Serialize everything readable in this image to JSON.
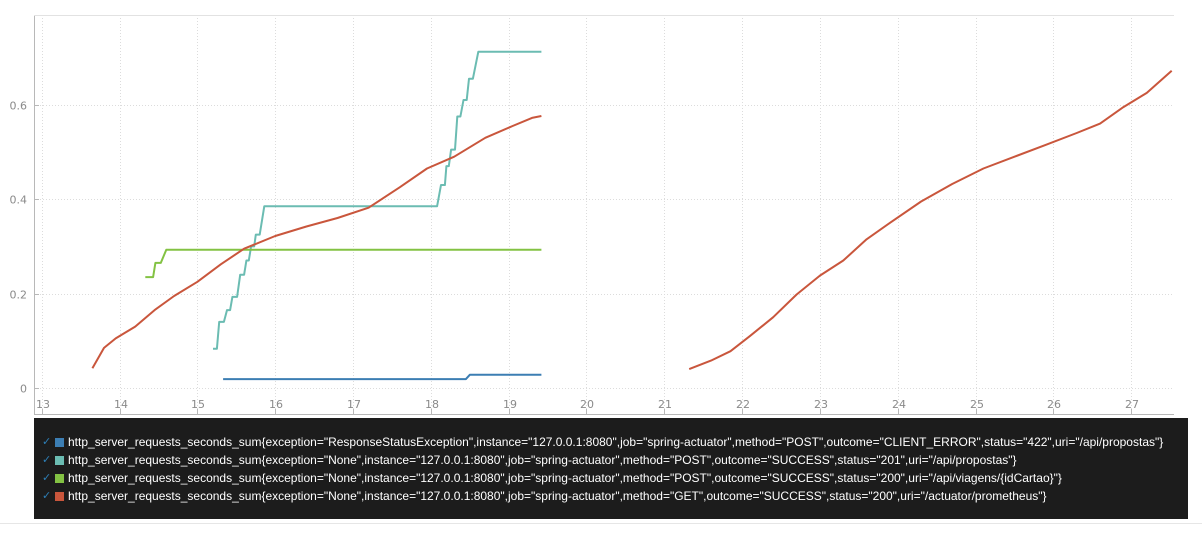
{
  "chart_data": {
    "type": "line",
    "xlim": [
      12.9,
      27.55
    ],
    "ylim": [
      -0.055,
      0.79
    ],
    "x_ticks": [
      13,
      14,
      15,
      16,
      17,
      18,
      19,
      20,
      21,
      22,
      23,
      24,
      25,
      26,
      27
    ],
    "x_tick_labels": [
      "13",
      "14",
      "15",
      "16",
      "17",
      "18",
      "19",
      "20",
      "21",
      "22",
      "23",
      "24",
      "25",
      "26",
      "27"
    ],
    "y_ticks": [
      0,
      0.2,
      0.4,
      0.6
    ],
    "y_tick_labels": [
      "0",
      "0.2",
      "0.4",
      "0.6"
    ],
    "grid": true,
    "legend_position": "bottom",
    "series": [
      {
        "name": "http_server_requests_seconds_sum{exception=\"ResponseStatusException\",instance=\"127.0.0.1:8080\",job=\"spring-actuator\",method=\"POST\",outcome=\"CLIENT_ERROR\",status=\"422\",uri=\"/api/propostas\"}",
        "color": "#3c7eb3",
        "segments": [
          [
            [
              15.33,
              0.019
            ],
            [
              18.45,
              0.019
            ],
            [
              18.5,
              0.028
            ],
            [
              19.42,
              0.028
            ]
          ]
        ]
      },
      {
        "name": "http_server_requests_seconds_sum{exception=\"None\",instance=\"127.0.0.1:8080\",job=\"spring-actuator\",method=\"POST\",outcome=\"SUCCESS\",status=\"201\",uri=\"/api/propostas\"}",
        "color": "#6bbcb2",
        "segments": [
          [
            [
              15.2,
              0.083
            ],
            [
              15.25,
              0.083
            ],
            [
              15.28,
              0.14
            ],
            [
              15.34,
              0.14
            ],
            [
              15.38,
              0.165
            ],
            [
              15.42,
              0.165
            ],
            [
              15.45,
              0.193
            ],
            [
              15.51,
              0.193
            ],
            [
              15.55,
              0.24
            ],
            [
              15.6,
              0.24
            ],
            [
              15.63,
              0.27
            ],
            [
              15.66,
              0.27
            ],
            [
              15.69,
              0.3
            ],
            [
              15.73,
              0.3
            ],
            [
              15.75,
              0.325
            ],
            [
              15.8,
              0.325
            ],
            [
              15.86,
              0.385
            ],
            [
              18.08,
              0.385
            ],
            [
              18.13,
              0.43
            ],
            [
              18.18,
              0.43
            ],
            [
              18.2,
              0.47
            ],
            [
              18.23,
              0.47
            ],
            [
              18.26,
              0.505
            ],
            [
              18.31,
              0.505
            ],
            [
              18.34,
              0.575
            ],
            [
              18.38,
              0.575
            ],
            [
              18.42,
              0.61
            ],
            [
              18.46,
              0.61
            ],
            [
              18.49,
              0.655
            ],
            [
              18.54,
              0.655
            ],
            [
              18.61,
              0.712
            ],
            [
              19.42,
              0.712
            ]
          ]
        ]
      },
      {
        "name": "http_server_requests_seconds_sum{exception=\"None\",instance=\"127.0.0.1:8080\",job=\"spring-actuator\",method=\"POST\",outcome=\"SUCCESS\",status=\"200\",uri=\"/api/viagens/{idCartao}\"}",
        "color": "#83c243",
        "segments": [
          [
            [
              14.33,
              0.235
            ],
            [
              14.43,
              0.235
            ],
            [
              14.46,
              0.265
            ],
            [
              14.53,
              0.265
            ],
            [
              14.6,
              0.293
            ],
            [
              19.42,
              0.293
            ]
          ]
        ]
      },
      {
        "name": "http_server_requests_seconds_sum{exception=\"None\",instance=\"127.0.0.1:8080\",job=\"spring-actuator\",method=\"GET\",outcome=\"SUCCESS\",status=\"200\",uri=\"/actuator/prometheus\"}",
        "color": "#c9563c",
        "segments": [
          [
            [
              13.65,
              0.042
            ],
            [
              13.8,
              0.085
            ],
            [
              13.95,
              0.105
            ],
            [
              14.2,
              0.13
            ],
            [
              14.45,
              0.165
            ],
            [
              14.7,
              0.195
            ],
            [
              15.0,
              0.225
            ],
            [
              15.3,
              0.262
            ],
            [
              15.6,
              0.295
            ],
            [
              16.0,
              0.322
            ],
            [
              16.4,
              0.342
            ],
            [
              16.8,
              0.36
            ],
            [
              17.2,
              0.382
            ],
            [
              17.6,
              0.425
            ],
            [
              17.95,
              0.465
            ],
            [
              18.3,
              0.49
            ],
            [
              18.7,
              0.53
            ],
            [
              19.05,
              0.555
            ],
            [
              19.3,
              0.572
            ],
            [
              19.42,
              0.576
            ]
          ],
          [
            [
              21.32,
              0.04
            ],
            [
              21.6,
              0.058
            ],
            [
              21.85,
              0.078
            ],
            [
              22.1,
              0.11
            ],
            [
              22.4,
              0.15
            ],
            [
              22.7,
              0.198
            ],
            [
              23.0,
              0.238
            ],
            [
              23.3,
              0.27
            ],
            [
              23.6,
              0.315
            ],
            [
              23.9,
              0.35
            ],
            [
              24.3,
              0.395
            ],
            [
              24.7,
              0.432
            ],
            [
              25.1,
              0.465
            ],
            [
              25.5,
              0.49
            ],
            [
              25.9,
              0.515
            ],
            [
              26.3,
              0.54
            ],
            [
              26.6,
              0.56
            ],
            [
              26.9,
              0.595
            ],
            [
              27.2,
              0.625
            ],
            [
              27.52,
              0.672
            ]
          ]
        ]
      }
    ]
  }
}
